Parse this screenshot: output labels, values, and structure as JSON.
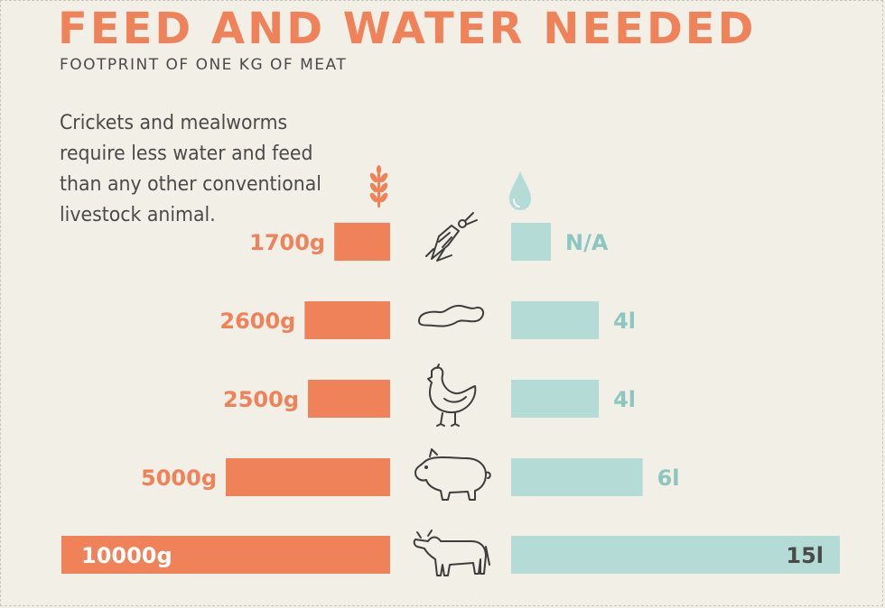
{
  "header": {
    "title": "FEED AND WATER NEEDED",
    "subtitle": "FOOTPRINT OF ONE KG OF MEAT",
    "intro": "Crickets and mealworms require less water and feed than any other conventional livestock animal."
  },
  "colors": {
    "feed": "#f0825a",
    "water": "#b5dbd7",
    "water_text": "#8cc6c1",
    "icon": "#3d3d3d"
  },
  "legend": {
    "feed_icon": "wheat-icon",
    "water_icon": "water-drop-icon"
  },
  "chart_data": {
    "type": "bar",
    "categories": [
      "cricket",
      "mealworm",
      "chicken",
      "pig",
      "cow"
    ],
    "category_icons": [
      "cricket-icon",
      "mealworm-icon",
      "chicken-icon",
      "pig-icon",
      "cow-icon"
    ],
    "series": [
      {
        "values": [
          1700,
          2600,
          2500,
          5000,
          10000
        ],
        "labels": [
          "1700g",
          "2600g",
          "2500g",
          "5000g",
          "10000g"
        ]
      },
      {
        "values": [
          null,
          4,
          4,
          6,
          15
        ],
        "labels": [
          "N/A",
          "4l",
          "4l",
          "6l",
          "15l"
        ]
      }
    ]
  }
}
